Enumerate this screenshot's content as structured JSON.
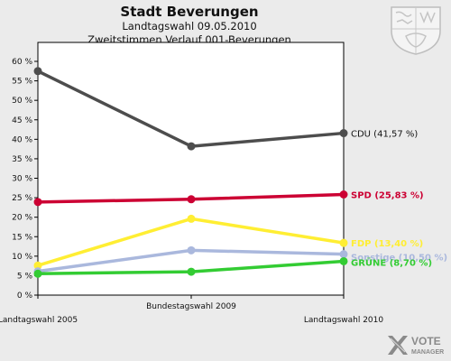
{
  "header": {
    "title": "Stadt Beverungen",
    "subtitle1": "Landtagswahl 09.05.2010",
    "subtitle2": "Zweitstimmen Verlauf 001-Beverungen"
  },
  "logo": {
    "brand_line1": "VOTE",
    "brand_line2": "MANAGER",
    "icon": "vote-manager-x-icon"
  },
  "crest": {
    "icon": "nrw-coat-of-arms-icon"
  },
  "chart_data": {
    "type": "line",
    "title": "Stadt Beverungen",
    "x": [
      "Landtagswahl 2005",
      "Bundestagswahl 2009",
      "Landtagswahl 2010"
    ],
    "xlabel": "",
    "ylabel": "",
    "ylim": [
      0,
      60
    ],
    "yticks": [
      0,
      5,
      10,
      15,
      20,
      25,
      30,
      35,
      40,
      45,
      50,
      55,
      60
    ],
    "ytick_suffix": " %",
    "grid": false,
    "series": [
      {
        "name": "CDU",
        "values": [
          57.5,
          38.2,
          41.57
        ],
        "color": "#4d4d4d",
        "end_label": "CDU (41,57 %)"
      },
      {
        "name": "SPD",
        "values": [
          23.9,
          24.6,
          25.83
        ],
        "color": "#cc0033",
        "end_label": "SPD (25,83 %)"
      },
      {
        "name": "FDP",
        "values": [
          7.6,
          19.6,
          13.4
        ],
        "color": "#ffee33",
        "end_label": "FDP (13,40 %)"
      },
      {
        "name": "Sonstige",
        "values": [
          6.1,
          11.5,
          10.5
        ],
        "color": "#aab8dd",
        "end_label": "Sonstige (10,50 %)"
      },
      {
        "name": "GRÜNE",
        "values": [
          5.5,
          6.0,
          8.7
        ],
        "color": "#33cc33",
        "end_label": "GRÜNE (8,70 %)"
      }
    ]
  }
}
